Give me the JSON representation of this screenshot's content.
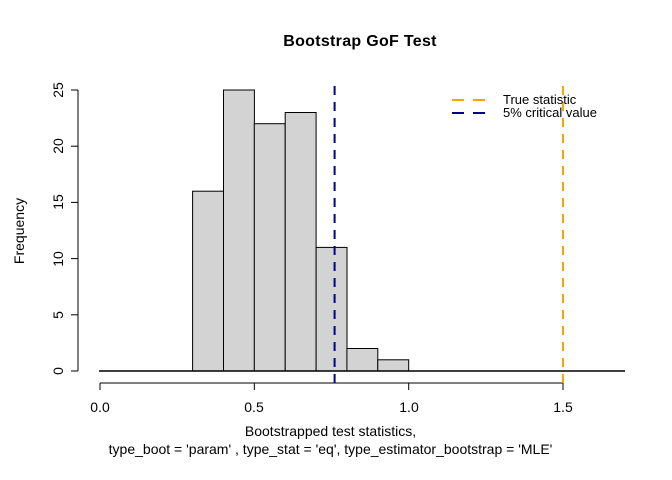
{
  "figure": {
    "title": "Bootstrap GoF Test"
  },
  "legend": {
    "position": "top-right",
    "items": [
      {
        "label": "True statistic",
        "color": "#FFA500"
      },
      {
        "label": "5% critical value",
        "color": "#00008B"
      }
    ]
  },
  "chart_data": {
    "type": "bar",
    "subtype": "histogram",
    "title": "Bootstrap GoF Test",
    "ylabel": "Frequency",
    "xlabel_lines": [
      "Bootstrapped test statistics,",
      "type_boot = 'param' , type_stat = 'eq', type_estimator_bootstrap = 'MLE'"
    ],
    "bin_edges": [
      0.3,
      0.4,
      0.5,
      0.6,
      0.7,
      0.8,
      0.9,
      1.0
    ],
    "counts": [
      16,
      25,
      22,
      23,
      11,
      2,
      1
    ],
    "bar_fill": "#D3D3D3",
    "bar_stroke": "#000000",
    "x_ticks": [
      0.0,
      0.5,
      1.0,
      1.5
    ],
    "x_tick_labels": [
      "0.0",
      "0.5",
      "1.0",
      "1.5"
    ],
    "y_ticks": [
      0,
      5,
      10,
      15,
      20,
      25
    ],
    "y_tick_labels": [
      "0",
      "5",
      "10",
      "15",
      "20",
      "25"
    ],
    "xlim": [
      0.0,
      1.5
    ],
    "ylim": [
      0,
      25
    ],
    "grid": false,
    "legend_position": "top-right",
    "vlines": [
      {
        "name": "true-statistic",
        "x": 1.5,
        "color": "#FFA500",
        "style": "dashed",
        "label": "True statistic"
      },
      {
        "name": "critical-value-5pct",
        "x": 0.76,
        "color": "#00008B",
        "style": "dashed",
        "label": "5% critical value"
      }
    ]
  }
}
